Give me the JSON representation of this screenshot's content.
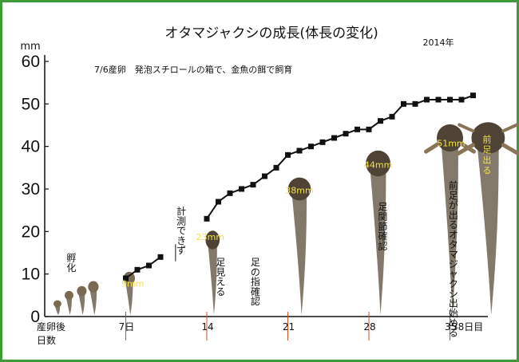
{
  "chart_data": {
    "type": "line",
    "title": "オタマジャクシの成長(体長の変化)",
    "year": "2014年",
    "subtitle": "7/6産卵　発泡スチロールの箱で、金魚の餌で飼育",
    "y_unit": "mm",
    "ylim": [
      0,
      60
    ],
    "yticks": [
      "0",
      "10",
      "20",
      "30",
      "40",
      "50",
      "60"
    ],
    "xlim": [
      0,
      38
    ],
    "xlabel": "産卵後\n日数",
    "xticks": [
      {
        "x": 7,
        "label": "7日"
      },
      {
        "x": 14,
        "label": "14"
      },
      {
        "x": 21,
        "label": "21"
      },
      {
        "x": 28,
        "label": "28"
      },
      {
        "x": 35,
        "label": "35"
      }
    ],
    "end_label": "38日目",
    "series": [
      {
        "points": [
          [
            7,
            9
          ],
          [
            8,
            11
          ],
          [
            9,
            12
          ],
          [
            10,
            14
          ],
          [
            14,
            23
          ],
          [
            15,
            27
          ],
          [
            16,
            29
          ],
          [
            17,
            30
          ],
          [
            18,
            31
          ],
          [
            19,
            33
          ],
          [
            20,
            35
          ],
          [
            21,
            38
          ],
          [
            22,
            39
          ],
          [
            23,
            40
          ],
          [
            24,
            41
          ],
          [
            25,
            42
          ],
          [
            26,
            43
          ],
          [
            27,
            44
          ],
          [
            28,
            44
          ],
          [
            29,
            46
          ],
          [
            30,
            47
          ],
          [
            31,
            50
          ],
          [
            32,
            50
          ],
          [
            33,
            51
          ],
          [
            34,
            51
          ],
          [
            35,
            51
          ],
          [
            36,
            51
          ],
          [
            37,
            52
          ]
        ]
      }
    ],
    "annotations": [
      {
        "text": "孵化",
        "x": 2.3,
        "y": 13
      },
      {
        "text": "計測できず",
        "x": 11.8,
        "y": 24
      },
      {
        "text": "足見える",
        "x": 15.2,
        "y": 12
      },
      {
        "text": "足の指確認",
        "x": 18.2,
        "y": 12
      },
      {
        "text": "足関節確認",
        "x": 29.2,
        "y": 25
      },
      {
        "text": "前足が出るオタマジャクシ出始める",
        "x": 35.3,
        "y": 30
      }
    ],
    "size_labels": [
      {
        "text": "9mm",
        "x": 7.6,
        "y": 7
      },
      {
        "text": "23mm",
        "x": 14.3,
        "y": 18
      },
      {
        "text": "38mm",
        "x": 22,
        "y": 29
      },
      {
        "text": "44mm",
        "x": 28.8,
        "y": 35
      },
      {
        "text": "51mm",
        "x": 35.1,
        "y": 40
      },
      {
        "text": "前足出る",
        "x": 38.2,
        "y": 41
      }
    ],
    "colors": {
      "line": "#111111",
      "frame": "#3f9a3a",
      "tick_mark": "#c8502a",
      "size_label": "#f2e04a"
    }
  }
}
